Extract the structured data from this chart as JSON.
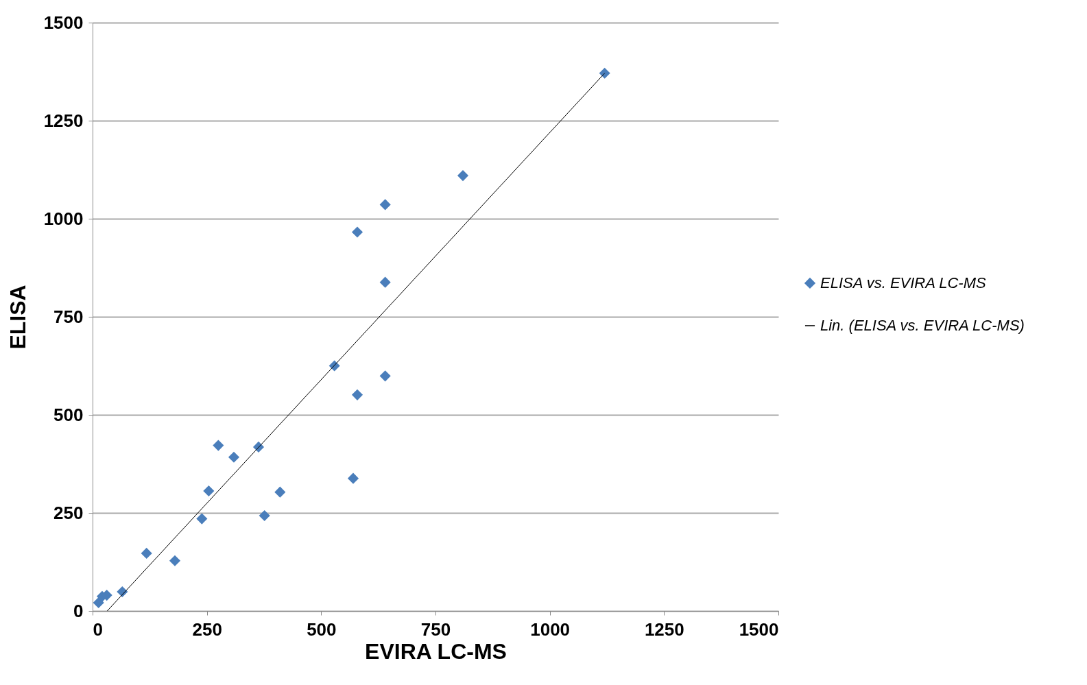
{
  "chart_data": {
    "type": "scatter",
    "xlabel": "EVIRA LC-MS",
    "ylabel": "ELISA",
    "xlim": [
      0,
      1500
    ],
    "xticks": [
      0,
      250,
      500,
      750,
      1000,
      1250,
      1500
    ],
    "ylim": [
      0,
      1500
    ],
    "yticks": [
      0,
      250,
      500,
      750,
      1000,
      1250,
      1500
    ],
    "grid": "y",
    "legend": "right",
    "series": [
      {
        "name": "ELISA vs. EVIRA LC-MS",
        "marker": "diamond",
        "color": "#4a7ebb",
        "x": [
          13,
          21,
          31,
          65,
          118,
          180,
          239,
          254,
          275,
          309,
          363,
          376,
          410,
          529,
          570,
          579,
          579,
          640,
          640,
          640,
          810,
          1120
        ],
        "values": [
          21,
          37,
          40,
          49,
          147,
          128,
          235,
          306,
          422,
          392,
          418,
          243,
          303,
          625,
          338,
          551,
          966,
          1036,
          838,
          599,
          1110,
          1371
        ]
      },
      {
        "name": "Lin. (ELISA vs. EVIRA LC-MS)",
        "type": "line",
        "color": "#000000",
        "x": [
          32,
          1120
        ],
        "values": [
          0,
          1371
        ]
      }
    ]
  }
}
